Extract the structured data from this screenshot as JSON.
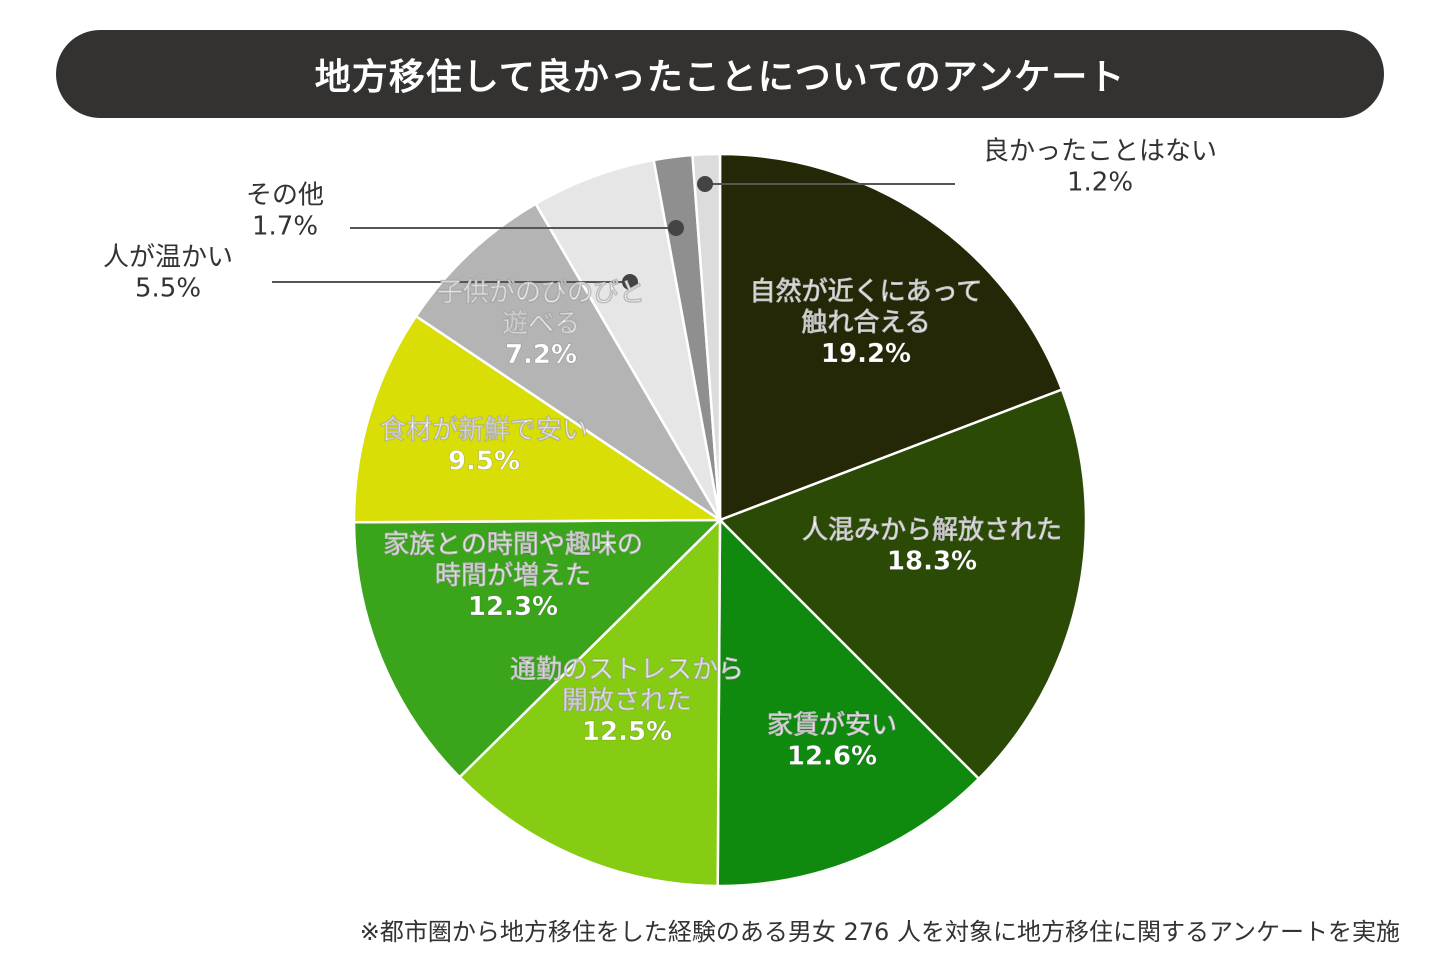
{
  "title": "地方移住して良かったことについてのアンケート",
  "note": "※都市圏から地方移住をした経験のある男女 276 人を対象に地方移住に関するアンケートを実施",
  "chart_data": {
    "type": "pie",
    "start": "top",
    "direction": "clockwise",
    "slices": [
      {
        "label": [
          "自然が近くにあって",
          "触れ合える"
        ],
        "value": 19.2,
        "value_label": "19.2%",
        "color": "#242806",
        "text_color": "#ffffff",
        "label_placement": "inside"
      },
      {
        "label": [
          "人混みから解放された"
        ],
        "value": 18.3,
        "value_label": "18.3%",
        "color": "#2b4a06",
        "text_color": "#ffffff",
        "label_placement": "inside"
      },
      {
        "label": [
          "家賃が安い"
        ],
        "value": 12.6,
        "value_label": "12.6%",
        "color": "#0f8a0f",
        "text_color": "#ffffff",
        "label_placement": "inside"
      },
      {
        "label": [
          "通勤のストレスから",
          "開放された"
        ],
        "value": 12.5,
        "value_label": "12.5%",
        "color": "#86cc12",
        "text_color": "#ffffff",
        "label_placement": "inside"
      },
      {
        "label": [
          "家族との時間や趣味の",
          "時間が増えた"
        ],
        "value": 12.3,
        "value_label": "12.3%",
        "color": "#3aa51a",
        "text_color": "#ffffff",
        "label_placement": "inside"
      },
      {
        "label": [
          "食材が新鮮で安い"
        ],
        "value": 9.5,
        "value_label": "9.5%",
        "color": "#d8de06",
        "text_color": "#ffffff",
        "label_placement": "inside"
      },
      {
        "label": [
          "子供がのびのびと",
          "遊べる"
        ],
        "value": 7.2,
        "value_label": "7.2%",
        "color": "#b4b4b4",
        "text_color": "#ffffff",
        "label_placement": "inside"
      },
      {
        "label": [
          "人が温かい"
        ],
        "value": 5.5,
        "value_label": "5.5%",
        "color": "#e6e6e6",
        "text_color": "#333333",
        "label_placement": "outside"
      },
      {
        "label": [
          "その他"
        ],
        "value": 1.7,
        "value_label": "1.7%",
        "color": "#8f8f8f",
        "text_color": "#333333",
        "label_placement": "outside"
      },
      {
        "label": [
          "良かったことはない"
        ],
        "value": 1.2,
        "value_label": "1.2%",
        "color": "#dcdcdc",
        "text_color": "#333333",
        "label_placement": "outside"
      }
    ]
  }
}
